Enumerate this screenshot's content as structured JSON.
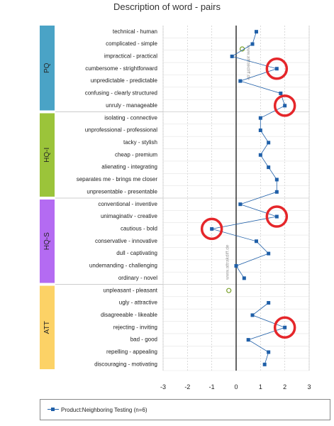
{
  "chart_data": {
    "type": "line",
    "title": "Description of word - pairs",
    "orientation": "horizontal",
    "xlim": [
      -3,
      3
    ],
    "x_ticks": [
      "-3",
      "-2",
      "-1",
      "0",
      "1",
      "2",
      "3"
    ],
    "legend_position": "bottom",
    "grid": true,
    "groups": [
      {
        "name": "PQ",
        "color": "#4aa3c6",
        "count": 7
      },
      {
        "name": "HQ-I",
        "color": "#9bc43a",
        "count": 7
      },
      {
        "name": "HQ-S",
        "color": "#b46bf2",
        "count": 7
      },
      {
        "name": "ATT",
        "color": "#fcd266",
        "count": 7
      }
    ],
    "categories": [
      "technical - human",
      "complicated - simple",
      "impractical - practical",
      "cumbersome - strightforward",
      "unpredictable - predictable",
      "confusing - clearly structured",
      "unruly - manageable",
      "isolating - connective",
      "unprofessional - professional",
      "tacky - stylish",
      "cheap - premium",
      "alienating - integrating",
      "separates me - brings me closer",
      "unpresentable - presentable",
      "conventional - inventive",
      "unimaginativ - creative",
      "cautious - bold",
      "conservative - innovative",
      "dull - captivating",
      "undemanding - challenging",
      "ordinary - novel",
      "unpleasant - pleasant",
      "ugly - attractive",
      "disagreeable - likeable",
      "rejecting - inviting",
      "bad - good",
      "repelling - appealing",
      "discouraging - motivating"
    ],
    "series": [
      {
        "name": "Product:Neighboring Testing (n=6)",
        "color": "#1f5fa8",
        "values": [
          0.83,
          0.67,
          -0.17,
          1.67,
          0.17,
          1.83,
          2.0,
          1.0,
          1.0,
          1.33,
          1.0,
          1.33,
          1.67,
          1.67,
          0.17,
          1.67,
          -1.0,
          0.83,
          1.33,
          0.0,
          0.33,
          null,
          1.33,
          0.67,
          2.0,
          0.5,
          1.33,
          1.17
        ]
      }
    ],
    "highlighted_rows": [
      3,
      6,
      15,
      16,
      24
    ],
    "watermark": "www.attrakdiff.de"
  },
  "legend": {
    "label": "Product:Neighboring Testing (n=6)"
  }
}
